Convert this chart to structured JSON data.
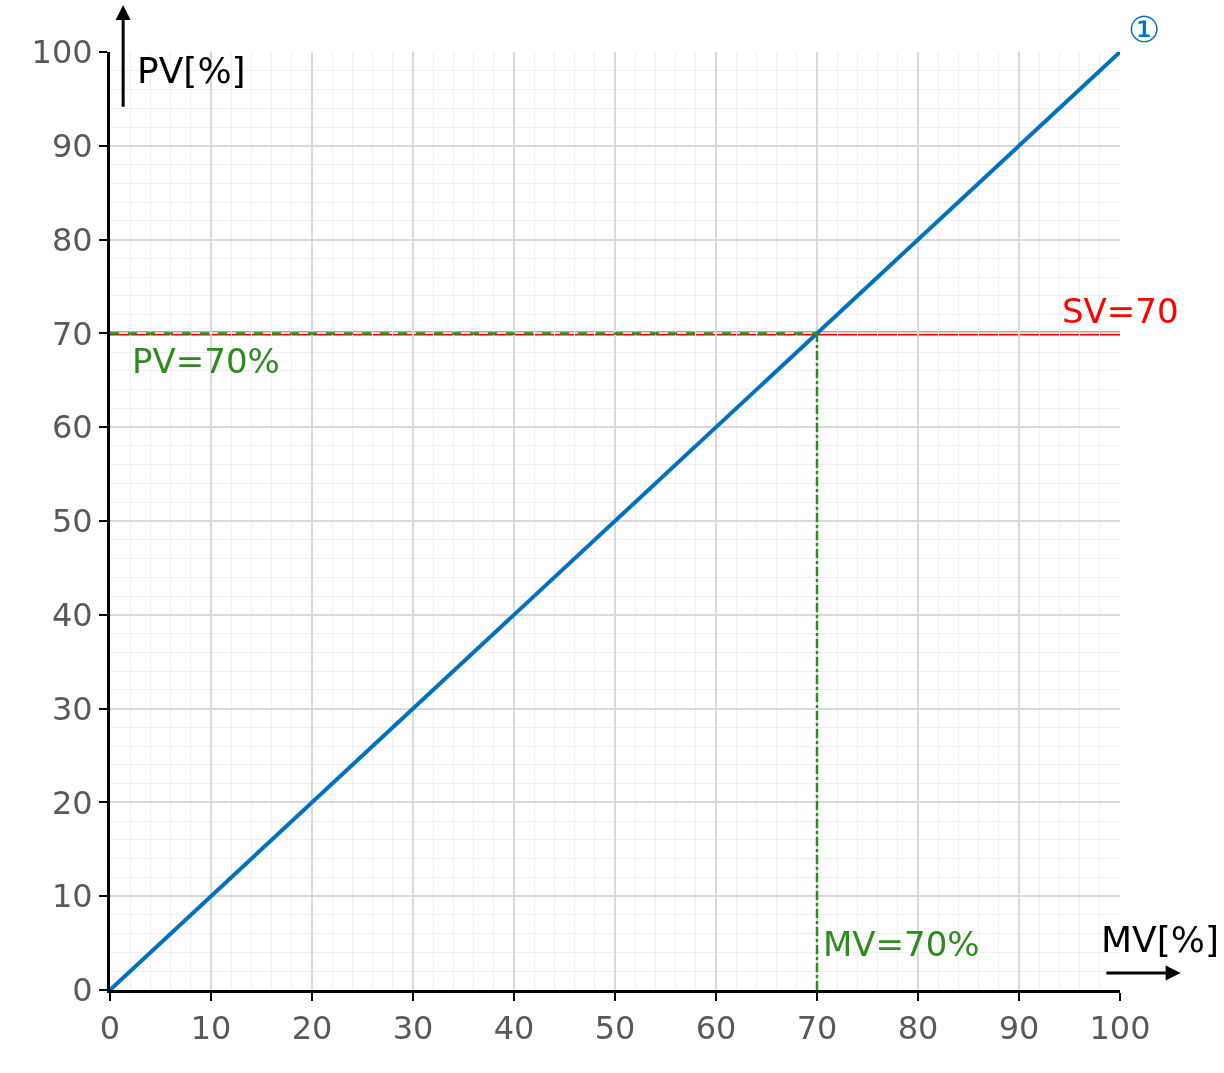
{
  "chart_data": {
    "type": "line",
    "xlabel": "MV[%]",
    "ylabel": "PV[%]",
    "xlim": [
      0,
      100
    ],
    "ylim": [
      0,
      100
    ],
    "xticks": [
      0,
      10,
      20,
      30,
      40,
      50,
      60,
      70,
      80,
      90,
      100
    ],
    "yticks": [
      0,
      10,
      20,
      30,
      40,
      50,
      60,
      70,
      80,
      90,
      100
    ],
    "grid": true,
    "legend": false,
    "marker": "none",
    "series": [
      {
        "name": "①",
        "color": "#0070c0",
        "x": [
          0,
          100
        ],
        "values": [
          0,
          100
        ]
      },
      {
        "color": "#2e8b1f",
        "x": [
          0,
          70
        ],
        "values": [
          70,
          70
        ],
        "line_style": "dashed"
      },
      {
        "color": "#2e8b1f",
        "x": [
          70,
          70
        ],
        "values": [
          0,
          70
        ],
        "line_style": "dashdot"
      }
    ],
    "ref_lines": [
      {
        "axis": "y",
        "value": 70,
        "label": "SV=70",
        "color": "#ff0000"
      }
    ],
    "annotations": [
      {
        "text": "PV=70%",
        "x": 2,
        "y": 70
      },
      {
        "text": "MV=70%",
        "x": 70,
        "y": 0
      }
    ]
  }
}
